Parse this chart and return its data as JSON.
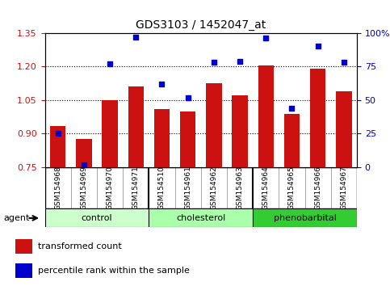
{
  "title": "GDS3103 / 1452047_at",
  "samples": [
    "GSM154968",
    "GSM154969",
    "GSM154970",
    "GSM154971",
    "GSM154510",
    "GSM154961",
    "GSM154962",
    "GSM154963",
    "GSM154964",
    "GSM154965",
    "GSM154966",
    "GSM154967"
  ],
  "transformed_count": [
    0.935,
    0.875,
    1.05,
    1.11,
    1.01,
    1.0,
    1.125,
    1.07,
    1.205,
    0.99,
    1.19,
    1.09
  ],
  "percentile_rank": [
    25,
    2,
    77,
    97,
    62,
    52,
    78,
    79,
    96,
    44,
    90,
    78
  ],
  "groups": [
    {
      "label": "control",
      "start": 0,
      "end": 3,
      "color": "#ccffcc"
    },
    {
      "label": "cholesterol",
      "start": 4,
      "end": 7,
      "color": "#aaffaa"
    },
    {
      "label": "phenobarbital",
      "start": 8,
      "end": 11,
      "color": "#33cc33"
    }
  ],
  "ylim_left": [
    0.75,
    1.35
  ],
  "ylim_right": [
    0,
    100
  ],
  "yticks_left": [
    0.75,
    0.9,
    1.05,
    1.2,
    1.35
  ],
  "yticks_right": [
    0,
    25,
    50,
    75,
    100
  ],
  "ytick_labels_right": [
    "0",
    "25",
    "50",
    "75",
    "100%"
  ],
  "hlines": [
    0.9,
    1.05,
    1.2
  ],
  "bar_color": "#cc1111",
  "dot_color": "#0000cc",
  "background_color": "#ffffff",
  "bar_width": 0.6,
  "agent_label": "agent"
}
